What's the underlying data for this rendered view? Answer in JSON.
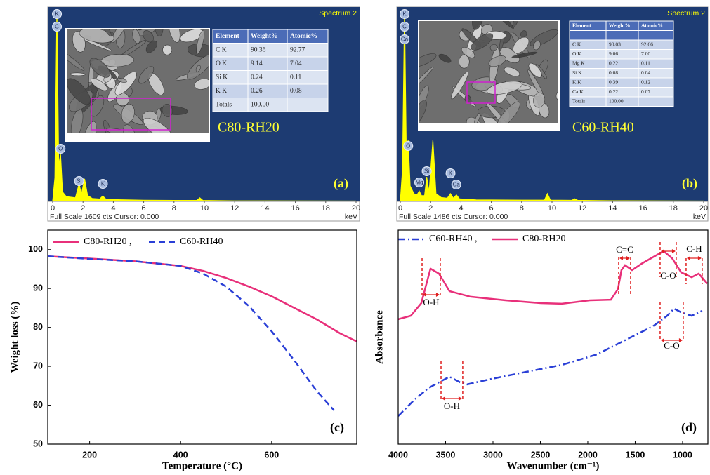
{
  "chart_data": [
    {
      "type": "spectrum",
      "title": "Spectrum 2",
      "label": "C80-RH20",
      "tag": "(a)",
      "footer": "Full Scale 1609 cts Cursor: 0.000",
      "xlabel": "keV",
      "color": "#ffff00",
      "xlim": [
        0,
        20
      ],
      "xticks": [
        0,
        2,
        4,
        6,
        8,
        10,
        12,
        14,
        16,
        18,
        20
      ],
      "ylim": [
        0,
        1609
      ],
      "x": [
        0,
        0.15,
        0.28,
        0.4,
        0.52,
        0.65,
        0.9,
        1.5,
        1.74,
        1.9,
        2.1,
        2.3,
        2.6,
        3.1,
        3.3,
        3.5,
        4,
        6,
        8,
        9.5,
        9.7,
        9.9,
        12,
        20
      ],
      "values": [
        0,
        200,
        1609,
        300,
        396,
        80,
        40,
        30,
        148,
        60,
        190,
        50,
        25,
        20,
        45,
        20,
        15,
        10,
        8,
        8,
        30,
        8,
        5,
        3
      ],
      "peaks": [
        {
          "text": "K",
          "x": 0.28
        },
        {
          "text": "C",
          "x": 0.28
        },
        {
          "text": "O",
          "x": 0.52
        },
        {
          "text": "Si",
          "x": 1.74
        },
        {
          "text": "K",
          "x": 3.31
        }
      ],
      "table": {
        "columns": [
          "Element",
          "Weight%",
          "Atomic%"
        ],
        "rows": [
          [
            "C K",
            "90.36",
            "92.77"
          ],
          [
            "O K",
            "9.14",
            "7.04"
          ],
          [
            "Si K",
            "0.24",
            "0.11"
          ],
          [
            "K K",
            "0.26",
            "0.08"
          ],
          [
            "Totals",
            "100.00"
          ]
        ]
      }
    },
    {
      "type": "spectrum",
      "title": "Spectrum 2",
      "label": "C60-RH40",
      "tag": "(b)",
      "footer": "Full Scale 1486 cts Cursor: 0.000",
      "xlabel": "keV",
      "color": "#ffff00",
      "xlim": [
        0,
        20
      ],
      "xticks": [
        0,
        2,
        4,
        6,
        8,
        10,
        12,
        14,
        16,
        18,
        20
      ],
      "ylim": [
        0,
        1486
      ],
      "x": [
        0,
        0.15,
        0.28,
        0.4,
        0.52,
        0.65,
        0.9,
        1.1,
        1.25,
        1.4,
        1.6,
        1.74,
        1.9,
        2.15,
        2.35,
        2.7,
        3.1,
        3.3,
        3.5,
        3.7,
        3.9,
        5,
        8,
        9.5,
        9.7,
        9.9,
        11.3,
        11.5,
        11.7,
        14,
        20
      ],
      "values": [
        0,
        250,
        1486,
        350,
        475,
        120,
        60,
        50,
        80,
        45,
        45,
        190,
        70,
        475,
        60,
        30,
        25,
        60,
        25,
        50,
        20,
        12,
        10,
        10,
        60,
        10,
        8,
        20,
        8,
        5,
        3
      ],
      "peaks": [
        {
          "text": "K",
          "x": 0.28
        },
        {
          "text": "C",
          "x": 0.28
        },
        {
          "text": "Ca",
          "x": 0.28
        },
        {
          "text": "O",
          "x": 0.52
        },
        {
          "text": "Mg",
          "x": 1.25
        },
        {
          "text": "Si",
          "x": 1.74
        },
        {
          "text": "K",
          "x": 3.31
        },
        {
          "text": "Ca",
          "x": 3.69
        }
      ],
      "table": {
        "columns": [
          "Element",
          "Weight%",
          "Atomic%"
        ],
        "rows": [
          [
            "C K",
            "90.03",
            "92.66"
          ],
          [
            "O K",
            "9.06",
            "7.00"
          ],
          [
            "Mg K",
            "0.22",
            "0.11"
          ],
          [
            "Si K",
            "0.08",
            "0.04"
          ],
          [
            "K K",
            "0.39",
            "0.12"
          ],
          [
            "Ca K",
            "0.22",
            "0.07"
          ],
          [
            "Totals",
            "100.00"
          ]
        ]
      }
    },
    {
      "type": "line",
      "tag": "(c)",
      "xlabel": "Temperature (°C)",
      "ylabel": "Weight loss (%)",
      "xlim": [
        108,
        787
      ],
      "xticks": [
        200,
        400,
        600
      ],
      "ylim": [
        50,
        105
      ],
      "yticks": [
        50,
        60,
        70,
        80,
        90,
        100
      ],
      "series": [
        {
          "name": "C80-RH20 ,",
          "color": "#e8307a",
          "dash": "solid",
          "x": [
            108,
            200,
            300,
            400,
            450,
            500,
            550,
            600,
            650,
            700,
            750,
            787
          ],
          "values": [
            98.3,
            97.7,
            97,
            95.8,
            94.5,
            92.7,
            90.5,
            88,
            85,
            82,
            78.5,
            76.4
          ]
        },
        {
          "name": "C60-RH40",
          "color": "#2a3fd6",
          "dash": "dashed",
          "x": [
            108,
            200,
            300,
            400,
            450,
            500,
            550,
            600,
            650,
            700,
            737
          ],
          "values": [
            98.3,
            97.6,
            97,
            95.8,
            93.8,
            90.5,
            85.5,
            79,
            71.5,
            63.5,
            58.7
          ]
        }
      ]
    },
    {
      "type": "line",
      "tag": "(d)",
      "xlabel": "Wavenumber (cm⁻¹)",
      "ylabel": "Absorbance",
      "xlim": [
        4000,
        733
      ],
      "xticks": [
        4000,
        3500,
        3000,
        2500,
        2000,
        1500,
        1000
      ],
      "ylim": [
        0,
        100
      ],
      "series": [
        {
          "name": "C60-RH40 ,",
          "color": "#2a3fd6",
          "dash": "dashdot",
          "x": [
            4000,
            3830,
            3681,
            3570,
            3459,
            3348,
            3274,
            3015,
            2644,
            2274,
            1904,
            1533,
            1311,
            1163,
            1089,
            1015,
            904,
            793
          ],
          "values": [
            13.1,
            20.7,
            26.2,
            28.9,
            31.5,
            28.9,
            27.9,
            30.5,
            33.8,
            37,
            41.9,
            50.2,
            55.1,
            60,
            63.3,
            61.6,
            60,
            62.3
          ]
        },
        {
          "name": "C80-RH20",
          "color": "#e8307a",
          "dash": "solid",
          "x": [
            4000,
            3867,
            3756,
            3659,
            3570,
            3459,
            3237,
            2867,
            2496,
            2274,
            1978,
            1756,
            1681,
            1645,
            1607,
            1533,
            1422,
            1200,
            1111,
            1015,
            904,
            830,
            740
          ],
          "values": [
            58.4,
            60,
            65.9,
            82,
            79.7,
            71.5,
            68.9,
            67.2,
            65.9,
            65.6,
            67.2,
            67.5,
            72.5,
            81.3,
            83.6,
            81.3,
            84.6,
            90.2,
            86.9,
            80.3,
            78,
            79.7,
            75
          ]
        }
      ],
      "annotations": [
        {
          "text": "O-H",
          "x": [
            3748,
            3556
          ]
        },
        {
          "text": "C=C",
          "x": [
            1674,
            1548
          ]
        },
        {
          "text": "C-O",
          "x": [
            1237,
            1067
          ]
        },
        {
          "text": "C-H",
          "x": [
            963,
            793
          ]
        },
        {
          "text": "C-O",
          "x": [
            1237,
            993
          ]
        },
        {
          "text": "O-H",
          "x": [
            3548,
            3319
          ]
        }
      ]
    }
  ]
}
